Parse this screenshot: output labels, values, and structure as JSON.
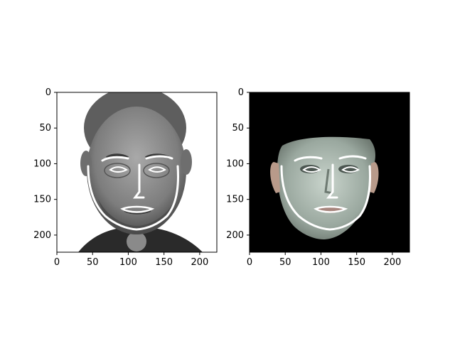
{
  "figure": {
    "panels": [
      {
        "name": "grayscale-photo",
        "image_kind": "grayscale portrait photo with facial landmark overlay",
        "background": "#ffffff",
        "xticks": [
          "0",
          "50",
          "100",
          "150",
          "200"
        ],
        "yticks": [
          "0",
          "50",
          "100",
          "150",
          "200"
        ],
        "xlim": [
          0,
          224
        ],
        "ylim": [
          224,
          0
        ]
      },
      {
        "name": "rendered-face",
        "image_kind": "3D face rendering on black background with facial landmark overlay",
        "background": "#000000",
        "xticks": [
          "0",
          "50",
          "100",
          "150",
          "200"
        ],
        "yticks": [
          "0",
          "50",
          "100",
          "150",
          "200"
        ],
        "xlim": [
          0,
          224
        ],
        "ylim": [
          224,
          0
        ]
      }
    ],
    "landmark_color": "#ffffff"
  }
}
